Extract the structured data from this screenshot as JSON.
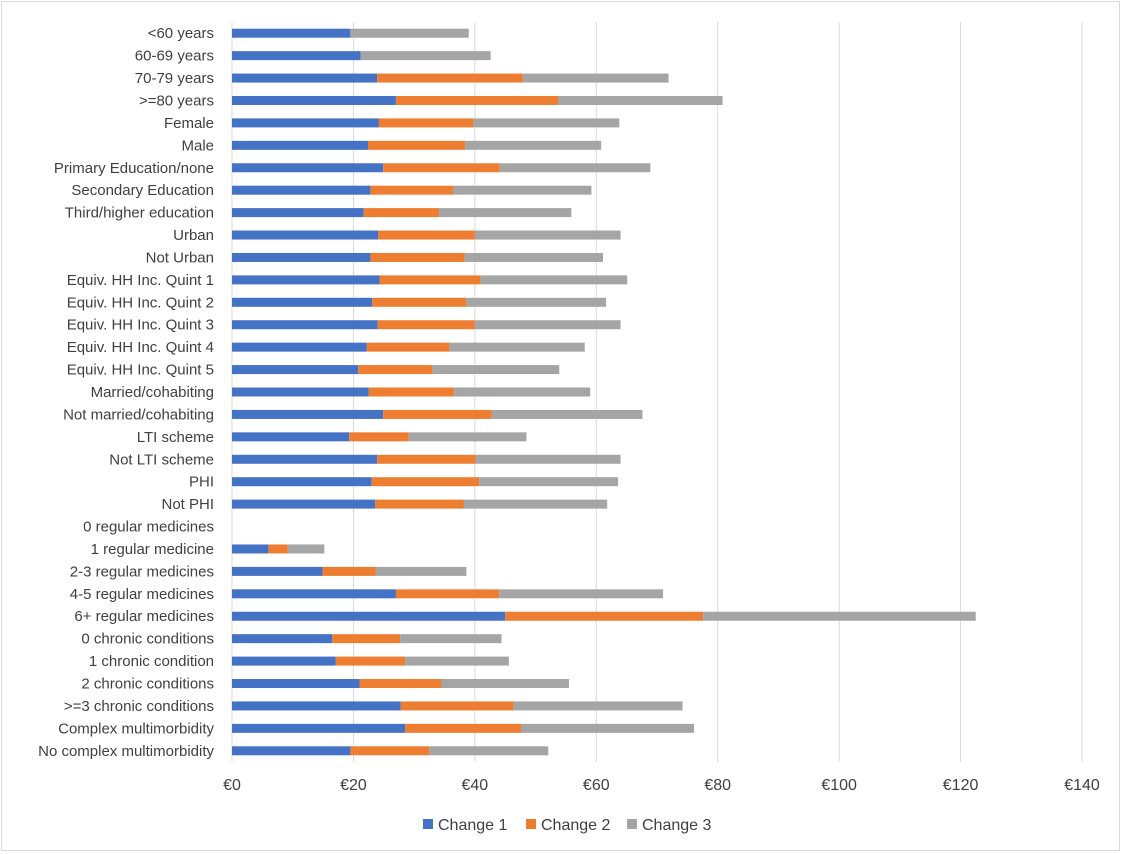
{
  "chart_data": {
    "type": "bar",
    "orientation": "horizontal",
    "stacked": true,
    "categories": [
      "<60 years",
      "60-69 years",
      "70-79 years",
      ">=80 years",
      "Female",
      "Male",
      "Primary Education/none",
      "Secondary Education",
      "Third/higher education",
      "Urban",
      "Not Urban",
      "Equiv. HH Inc. Quint 1",
      "Equiv. HH Inc. Quint 2",
      "Equiv. HH Inc. Quint 3",
      "Equiv. HH Inc. Quint 4",
      "Equiv. HH Inc. Quint 5",
      "Married/cohabiting",
      "Not married/cohabiting",
      "LTI scheme",
      "Not LTI scheme",
      "PHI",
      "Not PHI",
      "0 regular medicines",
      "1 regular medicine",
      "2-3 regular medicines",
      "4-5 regular medicines",
      "6+ regular medicines",
      "0 chronic conditions",
      "1 chronic condition",
      "2 chronic conditions",
      ">=3 chronic conditions",
      "Complex multimorbidity",
      "No complex multimorbidity"
    ],
    "series": [
      {
        "name": "Change 1",
        "color": "#4472c4",
        "values": [
          19.5,
          21.2,
          23.9,
          27.0,
          24.2,
          22.4,
          24.9,
          22.8,
          21.7,
          24.1,
          22.8,
          24.3,
          23.1,
          24.0,
          22.2,
          20.8,
          22.5,
          24.9,
          19.3,
          23.9,
          23.0,
          23.6,
          0,
          6.0,
          14.9,
          27.0,
          45.0,
          16.5,
          17.1,
          21.0,
          27.8,
          28.5,
          19.5
        ]
      },
      {
        "name": "Change 2",
        "color": "#ed7d31",
        "values": [
          0,
          0,
          24.0,
          26.7,
          15.6,
          16.0,
          19.2,
          13.6,
          12.4,
          15.9,
          15.5,
          16.6,
          15.5,
          16.0,
          13.6,
          12.2,
          14.1,
          17.9,
          9.8,
          16.2,
          17.7,
          14.6,
          0,
          3.2,
          8.8,
          17.0,
          32.6,
          11.2,
          11.4,
          13.5,
          18.6,
          19.1,
          13.0
        ]
      },
      {
        "name": "Change 3",
        "color": "#a5a5a5",
        "values": [
          19.5,
          21.4,
          24.0,
          27.1,
          24.0,
          22.4,
          24.8,
          22.8,
          21.8,
          24.0,
          22.8,
          24.2,
          23.0,
          24.0,
          22.3,
          20.9,
          22.4,
          24.8,
          19.4,
          23.9,
          22.9,
          23.6,
          0,
          6.0,
          14.9,
          27.0,
          44.9,
          16.7,
          17.1,
          21.0,
          27.8,
          28.5,
          19.6
        ]
      }
    ],
    "x_ticks": [
      "€0",
      "€20",
      "€40",
      "€60",
      "€80",
      "€100",
      "€120",
      "€140"
    ],
    "xlim": [
      0,
      140
    ],
    "x_tick_step": 20,
    "title": "",
    "xlabel": "",
    "ylabel": "",
    "grid": "vertical",
    "legend_position": "bottom"
  }
}
